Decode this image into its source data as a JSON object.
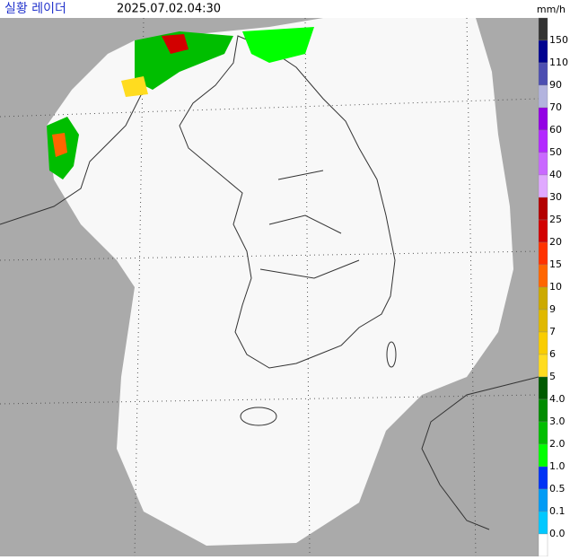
{
  "header": {
    "title": "실황 레이더",
    "time": "2025.07.02.04:30"
  },
  "legend": {
    "unit": "mm/h",
    "labels": [
      "150",
      "110",
      "90",
      "70",
      "60",
      "50",
      "40",
      "30",
      "25",
      "20",
      "15",
      "10",
      "9",
      "7",
      "6",
      "5",
      "4.0",
      "3.0",
      "2.0",
      "1.0",
      "0.5",
      "0.1",
      "0.0"
    ],
    "colors": [
      "#333333",
      "#000390",
      "#4c4eb1",
      "#b3b4de",
      "#9300e4",
      "#b329ff",
      "#c969ff",
      "#e0a9ff",
      "#b40000",
      "#d20000",
      "#ff3300",
      "#ff6600",
      "#ccaa00",
      "#e0b900",
      "#f9cd00",
      "#ffdc1f",
      "#005a00",
      "#008c00",
      "#00be00",
      "#00ff00",
      "#0033f5",
      "#009bf5",
      "#00c8ff",
      "#ffffff"
    ]
  }
}
